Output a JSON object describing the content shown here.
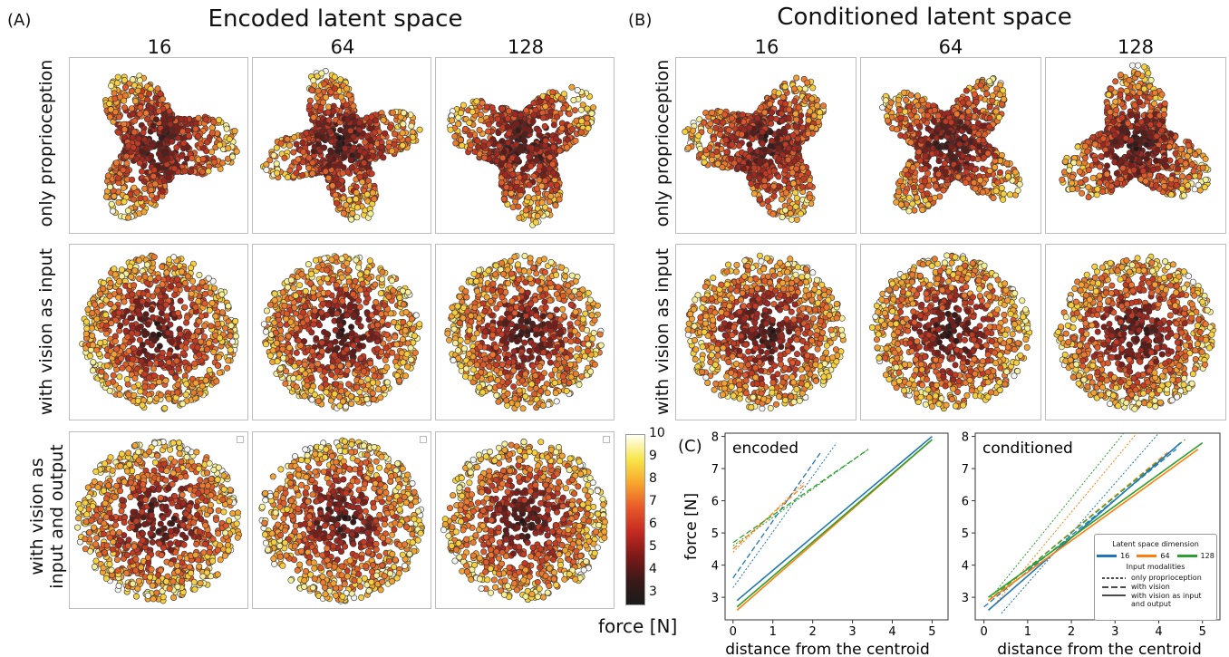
{
  "panel_a_label": "(A)",
  "panel_b_label": "(B)",
  "panel_c_label": "(C)",
  "title_a": "Encoded latent space",
  "title_b": "Conditioned latent space",
  "dimensions": [
    "16",
    "64",
    "128"
  ],
  "rows": {
    "r1": "only proprioception",
    "r2": "with vision as input",
    "r3_line1": "with vision as",
    "r3_line2": "input and output"
  },
  "colorbar": {
    "label": "force [N]",
    "ticks": [
      "10",
      "9",
      "8",
      "7",
      "6",
      "5",
      "4",
      "3"
    ],
    "colors": [
      "#fffff5",
      "#f7e64a",
      "#f7a52d",
      "#e8582a",
      "#c42a22",
      "#7d1a18",
      "#3a1a18",
      "#1b1b1b"
    ]
  },
  "legend": {
    "title": "Latent space dimension",
    "dims": [
      "16",
      "64",
      "128"
    ],
    "modalities_title": "Input modalities",
    "m1": "only proprioception",
    "m2": "with vision",
    "m3_line1": "with vision as input",
    "m3_line2": "and output"
  },
  "series_colors": {
    "16": "#1f77b4",
    "64": "#ff7f0e",
    "128": "#2ca02c"
  },
  "chart_data": [
    {
      "type": "line",
      "title": "encoded",
      "xlabel": "distance from the centroid",
      "ylabel": "force [N]",
      "xlim": [
        -0.2,
        5.4
      ],
      "ylim": [
        2.3,
        8.1
      ],
      "xticks": [
        0,
        1,
        2,
        3,
        4,
        5
      ],
      "yticks": [
        3,
        4,
        5,
        6,
        7,
        8
      ],
      "series": [
        {
          "dim": "16",
          "modality": "only proprioception",
          "x": [
            0,
            2.6
          ],
          "y": [
            3.3,
            7.8
          ]
        },
        {
          "dim": "64",
          "modality": "only proprioception",
          "x": [
            0,
            1.8
          ],
          "y": [
            4.4,
            6.6
          ]
        },
        {
          "dim": "128",
          "modality": "only proprioception",
          "x": [
            0,
            3.4
          ],
          "y": [
            4.6,
            7.6
          ]
        },
        {
          "dim": "16",
          "modality": "with vision",
          "x": [
            0,
            2.2
          ],
          "y": [
            3.6,
            7.5
          ]
        },
        {
          "dim": "64",
          "modality": "with vision",
          "x": [
            0,
            1.8
          ],
          "y": [
            4.5,
            6.5
          ]
        },
        {
          "dim": "128",
          "modality": "with vision",
          "x": [
            0,
            3.4
          ],
          "y": [
            4.7,
            7.6
          ]
        },
        {
          "dim": "16",
          "modality": "with vision as input and output",
          "x": [
            0.1,
            5
          ],
          "y": [
            2.9,
            8.0
          ]
        },
        {
          "dim": "64",
          "modality": "with vision as input and output",
          "x": [
            0.1,
            5
          ],
          "y": [
            2.6,
            7.9
          ]
        },
        {
          "dim": "128",
          "modality": "with vision as input and output",
          "x": [
            0.1,
            5
          ],
          "y": [
            2.7,
            7.9
          ]
        }
      ]
    },
    {
      "type": "line",
      "title": "conditioned",
      "xlabel": "distance from the centroid",
      "ylabel": "",
      "xlim": [
        -0.2,
        5.4
      ],
      "ylim": [
        2.3,
        8.1
      ],
      "xticks": [
        0,
        1,
        2,
        3,
        4,
        5
      ],
      "yticks": [
        3,
        4,
        5,
        6,
        7,
        8
      ],
      "series": [
        {
          "dim": "16",
          "modality": "only proprioception",
          "x": [
            0.4,
            4.0
          ],
          "y": [
            2.5,
            8.1
          ]
        },
        {
          "dim": "64",
          "modality": "only proprioception",
          "x": [
            0.2,
            3.5
          ],
          "y": [
            2.7,
            8.1
          ]
        },
        {
          "dim": "128",
          "modality": "only proprioception",
          "x": [
            0.1,
            3.2
          ],
          "y": [
            2.9,
            8.1
          ]
        },
        {
          "dim": "16",
          "modality": "with vision",
          "x": [
            0,
            4.4
          ],
          "y": [
            2.7,
            7.6
          ]
        },
        {
          "dim": "64",
          "modality": "with vision",
          "x": [
            0.1,
            4.2
          ],
          "y": [
            2.9,
            7.5
          ]
        },
        {
          "dim": "128",
          "modality": "with vision",
          "x": [
            0.1,
            4.6
          ],
          "y": [
            2.9,
            7.9
          ]
        },
        {
          "dim": "16",
          "modality": "with vision as input and output",
          "x": [
            0.1,
            4.5
          ],
          "y": [
            2.6,
            7.8
          ]
        },
        {
          "dim": "64",
          "modality": "with vision as input and output",
          "x": [
            0.1,
            4.9
          ],
          "y": [
            2.9,
            7.6
          ]
        },
        {
          "dim": "128",
          "modality": "with vision as input and output",
          "x": [
            0.1,
            5.0
          ],
          "y": [
            3.0,
            7.8
          ]
        }
      ]
    }
  ]
}
